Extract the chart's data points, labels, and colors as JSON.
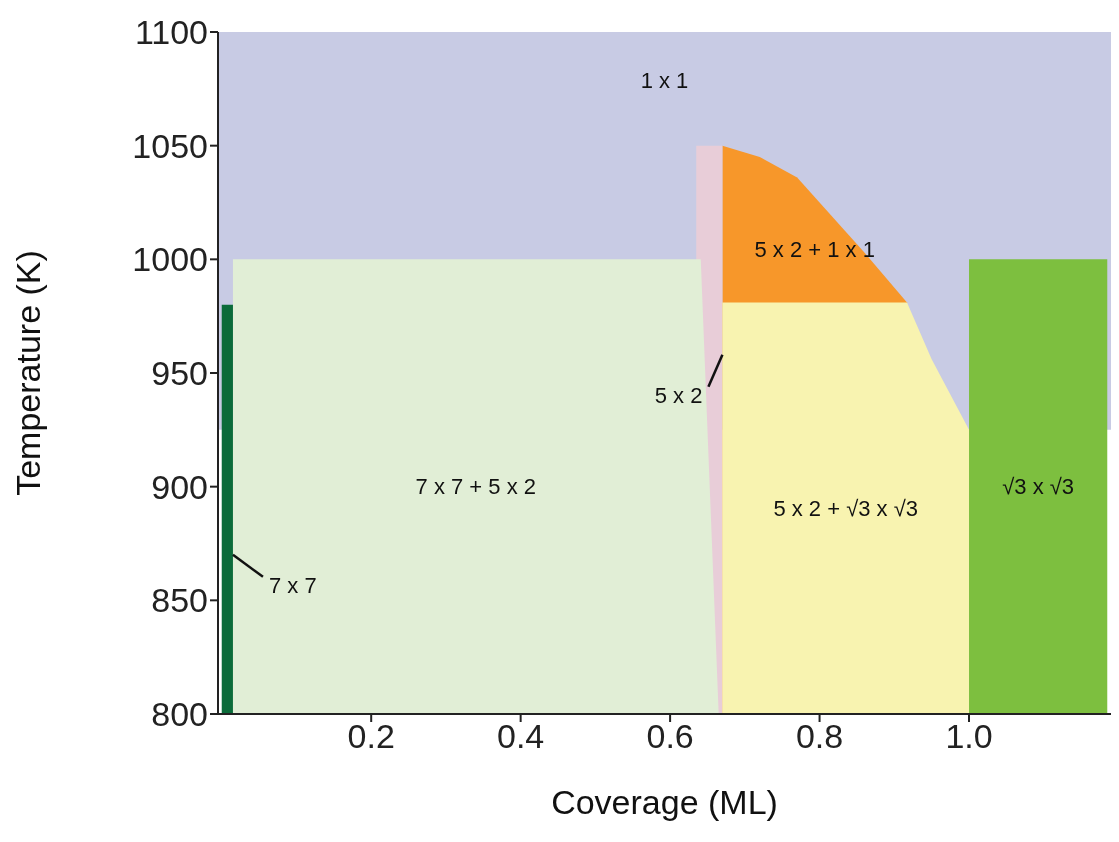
{
  "chart_data": {
    "type": "area",
    "xlabel": "Coverage (ML)",
    "ylabel": "Temperature (K)",
    "xlim": [
      -0.005,
      1.19
    ],
    "xticks": [
      0.2,
      0.4,
      0.6,
      0.8,
      {
        "value": 1,
        "label": "1.0"
      }
    ],
    "ylim": [
      800,
      1100
    ],
    "yticks": [
      800,
      850,
      900,
      950,
      1000,
      1050,
      1100
    ],
    "grid": false,
    "legend": false,
    "series": [
      {
        "name": "5 x 2 + 1 x 1",
        "color": "#f7972a",
        "x": [
          0.67,
          0.72,
          0.77,
          0.86,
          0.917
        ],
        "values": [
          1050,
          1045,
          1036,
          1003,
          981
        ]
      },
      {
        "color": "#e8cdd8",
        "x": [
          0.635,
          0.67
        ],
        "values": [
          1050,
          1050
        ]
      },
      {
        "name": "7 x 7 + 5 x 2",
        "color": "#e1eed6",
        "x": [
          0.015,
          0.635,
          0.641,
          0.665
        ],
        "values": [
          1000,
          1000,
          1000,
          800
        ]
      },
      {
        "color": "#0b6b3a",
        "x": [
          0,
          0.015
        ],
        "values": [
          980,
          980
        ]
      },
      {
        "name": "5 x 2 + √3 x √3",
        "color": "#f8f3b0",
        "x": [
          0.67,
          0.917,
          0.95,
          1.0
        ],
        "values": [
          981,
          981,
          956,
          925
        ]
      },
      {
        "name": "√3 x √3",
        "color": "#7dbf3f",
        "x": [
          1.0,
          1.185
        ],
        "values": [
          1000,
          1000
        ]
      }
    ],
    "bands": [
      {
        "axis": "y",
        "from": 925,
        "to": 1100,
        "label": "1 x 1",
        "color": "#c8cbe4"
      }
    ],
    "annotations": [
      {
        "text": "7 x 7",
        "x": 0.015,
        "y": 870
      },
      {
        "text": "5 x 2",
        "x": 0.67,
        "y": 958
      }
    ]
  }
}
